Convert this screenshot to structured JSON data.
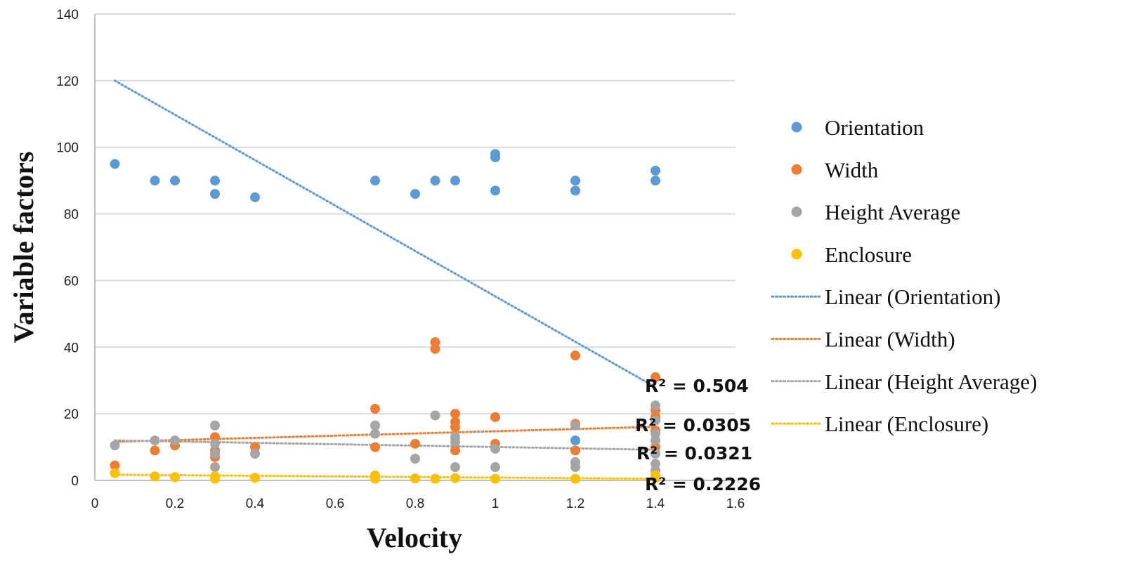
{
  "chart_data": {
    "type": "scatter",
    "xlabel": "Velocity",
    "ylabel": "Variable factors",
    "xlim": [
      0,
      1.6
    ],
    "ylim": [
      0,
      140
    ],
    "x_ticks": [
      "0",
      "0.2",
      "0.4",
      "0.6",
      "0.8",
      "1",
      "1.2",
      "1.4",
      "1.6"
    ],
    "y_ticks": [
      "0",
      "20",
      "40",
      "60",
      "80",
      "100",
      "120",
      "140"
    ],
    "grid": "horizontal",
    "legend_position": "right",
    "series": [
      {
        "name": "Orientation",
        "color": "#5b9bd5",
        "points": [
          [
            0.05,
            95
          ],
          [
            0.15,
            90
          ],
          [
            0.2,
            90
          ],
          [
            0.3,
            90
          ],
          [
            0.3,
            86
          ],
          [
            0.4,
            85
          ],
          [
            0.7,
            90
          ],
          [
            0.8,
            86
          ],
          [
            0.85,
            90
          ],
          [
            0.9,
            90
          ],
          [
            1.0,
            98
          ],
          [
            1.0,
            97
          ],
          [
            1.0,
            87
          ],
          [
            1.2,
            90
          ],
          [
            1.2,
            87
          ],
          [
            1.2,
            12
          ],
          [
            1.4,
            93
          ],
          [
            1.4,
            90
          ]
        ],
        "trendline": {
          "name": "Linear (Orientation)",
          "x": [
            0.05,
            1.4
          ],
          "y": [
            120,
            28
          ],
          "r2_label": "R² = 0.504"
        }
      },
      {
        "name": "Width",
        "color": "#ed7d31",
        "points": [
          [
            0.05,
            4.5
          ],
          [
            0.15,
            9
          ],
          [
            0.2,
            10.5
          ],
          [
            0.3,
            13
          ],
          [
            0.3,
            9
          ],
          [
            0.3,
            7
          ],
          [
            0.4,
            10
          ],
          [
            0.7,
            21.5
          ],
          [
            0.7,
            10
          ],
          [
            0.8,
            11
          ],
          [
            0.85,
            41.5
          ],
          [
            0.85,
            39.5
          ],
          [
            0.9,
            20
          ],
          [
            0.9,
            17.5
          ],
          [
            0.9,
            16
          ],
          [
            0.9,
            9
          ],
          [
            1.0,
            19
          ],
          [
            1.0,
            11
          ],
          [
            1.2,
            37.5
          ],
          [
            1.2,
            17
          ],
          [
            1.2,
            9
          ],
          [
            1.4,
            31
          ],
          [
            1.4,
            21
          ],
          [
            1.4,
            19
          ],
          [
            1.4,
            15
          ],
          [
            1.4,
            10
          ]
        ],
        "trendline": {
          "name": "Linear (Width)",
          "x": [
            0.05,
            1.4
          ],
          "y": [
            11.6,
            16.1
          ],
          "r2_label": "R² = 0.0305"
        }
      },
      {
        "name": "Height Average",
        "color": "#a5a5a5",
        "points": [
          [
            0.05,
            10.5
          ],
          [
            0.15,
            12
          ],
          [
            0.2,
            12
          ],
          [
            0.3,
            16.5
          ],
          [
            0.3,
            11
          ],
          [
            0.3,
            8
          ],
          [
            0.3,
            4
          ],
          [
            0.4,
            8
          ],
          [
            0.7,
            16.5
          ],
          [
            0.7,
            14
          ],
          [
            0.8,
            6.5
          ],
          [
            0.85,
            19.5
          ],
          [
            0.9,
            13
          ],
          [
            0.9,
            11.5
          ],
          [
            0.9,
            4
          ],
          [
            1.0,
            9.5
          ],
          [
            1.0,
            4
          ],
          [
            1.2,
            16.5
          ],
          [
            1.2,
            5.5
          ],
          [
            1.2,
            4
          ],
          [
            1.4,
            22.5
          ],
          [
            1.4,
            18
          ],
          [
            1.4,
            14
          ],
          [
            1.4,
            12
          ],
          [
            1.4,
            8
          ],
          [
            1.4,
            5
          ],
          [
            1.4,
            3
          ]
        ],
        "trendline": {
          "name": "Linear (Height Average)",
          "x": [
            0.05,
            1.4
          ],
          "y": [
            12.0,
            9.2
          ],
          "r2_label": "R² = 0.0321"
        }
      },
      {
        "name": "Enclosure",
        "color": "#ffc000",
        "points": [
          [
            0.05,
            2.2
          ],
          [
            0.15,
            1.2
          ],
          [
            0.2,
            1.0
          ],
          [
            0.3,
            1.2
          ],
          [
            0.3,
            0.5
          ],
          [
            0.4,
            0.8
          ],
          [
            0.7,
            1.5
          ],
          [
            0.7,
            0.5
          ],
          [
            0.8,
            0.6
          ],
          [
            0.85,
            0.5
          ],
          [
            0.9,
            0.7
          ],
          [
            1.0,
            0.5
          ],
          [
            1.2,
            0.5
          ],
          [
            1.4,
            1.5
          ],
          [
            1.4,
            0.8
          ]
        ],
        "trendline": {
          "name": "Linear (Enclosure)",
          "x": [
            0.05,
            1.4
          ],
          "y": [
            1.7,
            0.5
          ],
          "r2_label": "R² = 0.2226"
        }
      }
    ]
  }
}
